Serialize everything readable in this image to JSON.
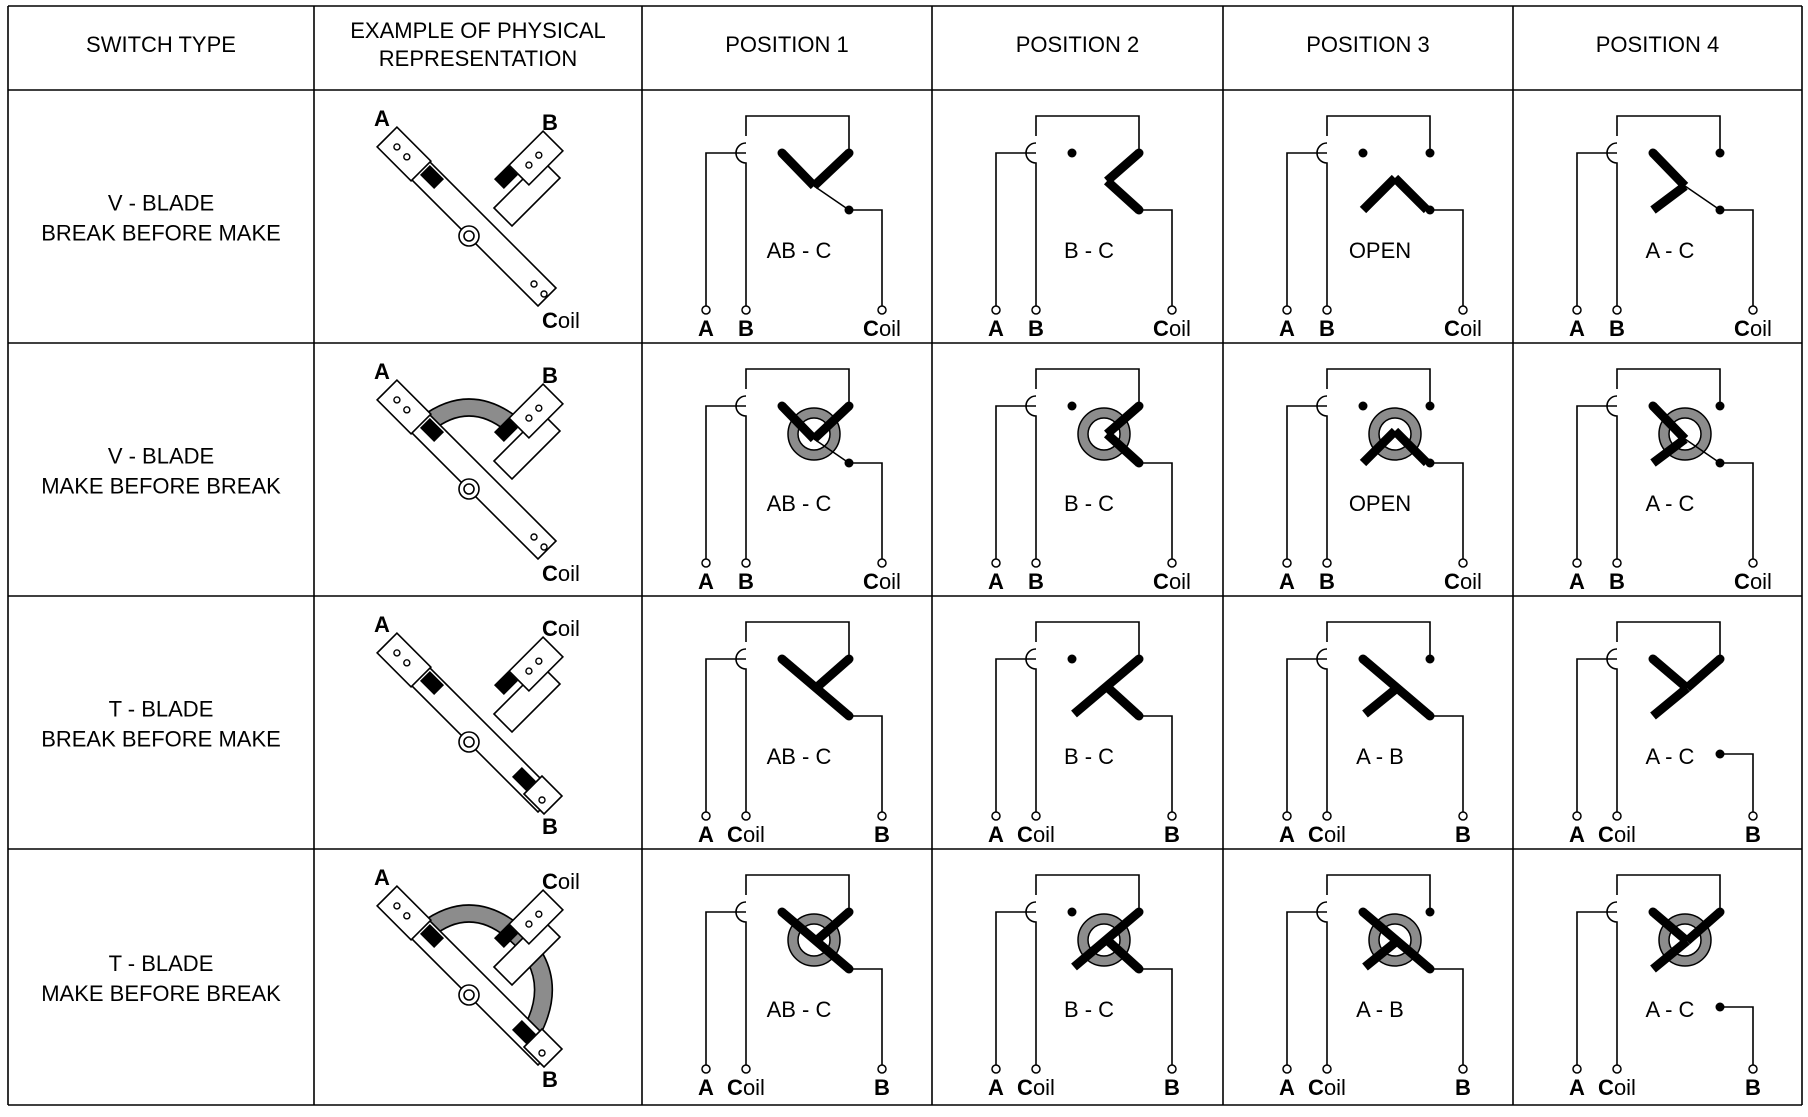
{
  "colors": {
    "line": "#000000",
    "fill": "#ffffff",
    "shade": "#8c8c8c",
    "grid": "#000000"
  },
  "headers": {
    "switch_type": "SWITCH TYPE",
    "example": [
      "EXAMPLE OF PHYSICAL",
      "REPRESENTATION"
    ],
    "positions": [
      "POSITION 1",
      "POSITION 2",
      "POSITION 3",
      "POSITION 4"
    ]
  },
  "rows": [
    {
      "label": [
        "V - BLADE",
        "BREAK BEFORE MAKE"
      ],
      "blade": "V",
      "make_before_break": false,
      "physical_labels": {
        "left": "A",
        "right": "B",
        "tail": "Coil"
      },
      "terminal_labels": [
        "A",
        "B",
        "Coil"
      ],
      "positions": [
        {
          "label": "AB - C"
        },
        {
          "label": "B - C"
        },
        {
          "label": "OPEN"
        },
        {
          "label": "A - C"
        }
      ]
    },
    {
      "label": [
        "V - BLADE",
        "MAKE BEFORE BREAK"
      ],
      "blade": "V",
      "make_before_break": true,
      "physical_labels": {
        "left": "A",
        "right": "B",
        "tail": "Coil"
      },
      "terminal_labels": [
        "A",
        "B",
        "Coil"
      ],
      "positions": [
        {
          "label": "AB - C"
        },
        {
          "label": "B - C"
        },
        {
          "label": "OPEN"
        },
        {
          "label": "A - C"
        }
      ]
    },
    {
      "label": [
        "T - BLADE",
        "BREAK BEFORE MAKE"
      ],
      "blade": "T",
      "make_before_break": false,
      "physical_labels": {
        "left": "A",
        "right": "Coil",
        "tail": "B"
      },
      "terminal_labels": [
        "A",
        "Coil",
        "B"
      ],
      "positions": [
        {
          "label": "AB - C"
        },
        {
          "label": "B - C"
        },
        {
          "label": "A - B"
        },
        {
          "label": "A - C"
        }
      ]
    },
    {
      "label": [
        "T - BLADE",
        "MAKE BEFORE BREAK"
      ],
      "blade": "T",
      "make_before_break": true,
      "physical_labels": {
        "left": "A",
        "right": "Coil",
        "tail": "B"
      },
      "terminal_labels": [
        "A",
        "Coil",
        "B"
      ],
      "positions": [
        {
          "label": "AB - C"
        },
        {
          "label": "B - C"
        },
        {
          "label": "A - B"
        },
        {
          "label": "A - C"
        }
      ]
    }
  ]
}
